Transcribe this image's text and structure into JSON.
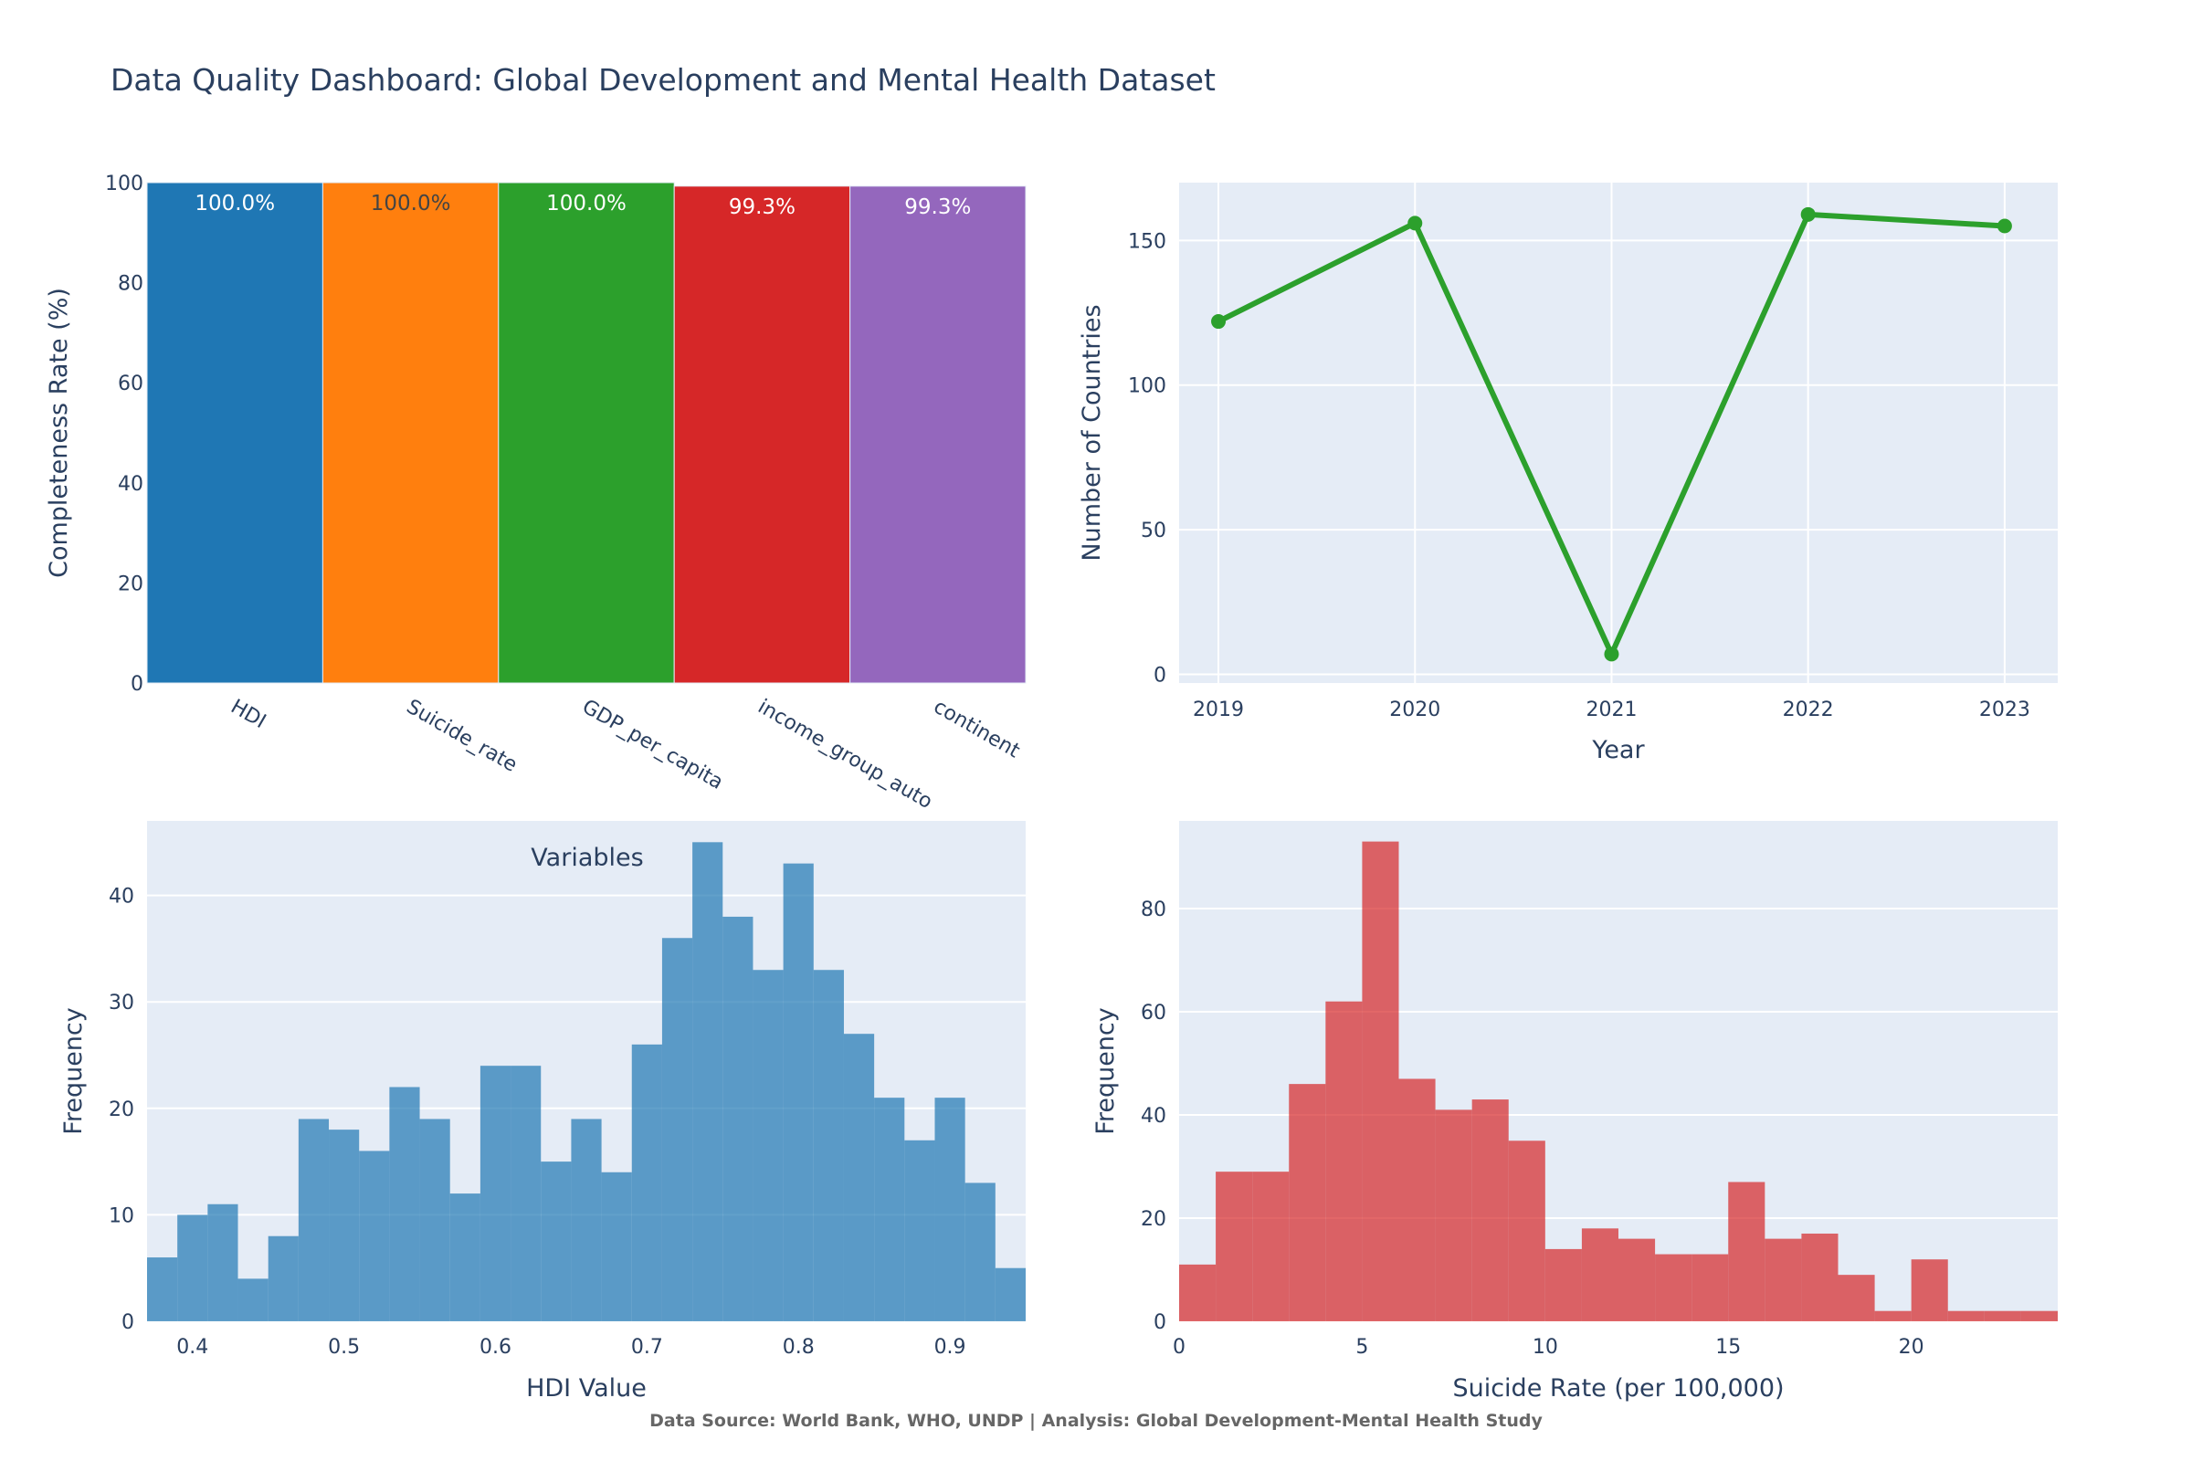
{
  "title": "Data Quality Dashboard: Global Development and Mental Health Dataset",
  "footer": "Data Source: World Bank, WHO, UNDP | Analysis: Global Development-Mental Health Study",
  "colors": {
    "plot_bg": "#e5ecf6",
    "grid": "#ffffff",
    "text": "#2a3f5f",
    "footer_text": "#666666"
  },
  "chart_data": [
    {
      "type": "bar",
      "categories": [
        "HDI",
        "Suicide_rate",
        "GDP_per_capita",
        "income_group_auto",
        "continent"
      ],
      "values": [
        100.0,
        100.0,
        100.0,
        99.3,
        99.3
      ],
      "data_labels": [
        "100.0%",
        "100.0%",
        "100.0%",
        "99.3%",
        "99.3%"
      ],
      "colors": [
        "#1f77b4",
        "#ff7f0e",
        "#2ca02c",
        "#d62728",
        "#9467bd"
      ],
      "label_colors": [
        "#ffffff",
        "#444444",
        "#ffffff",
        "#ffffff",
        "#ffffff"
      ],
      "ylabel": "Completeness Rate (%)",
      "xlabel": "Variables",
      "ylim": [
        0,
        100
      ],
      "yticks": [
        0,
        20,
        40,
        60,
        80,
        100
      ],
      "grid": false
    },
    {
      "type": "line",
      "x": [
        2019,
        2020,
        2021,
        2022,
        2023
      ],
      "values": [
        122,
        156,
        7,
        159,
        155
      ],
      "color": "#2ca02c",
      "xlabel": "Year",
      "ylabel": "Number of Countries",
      "xlim": [
        2018.8,
        2023.27
      ],
      "ylim": [
        -3,
        170
      ],
      "xticks": [
        2019,
        2020,
        2021,
        2022,
        2023
      ],
      "yticks": [
        0,
        50,
        100,
        150
      ],
      "grid": true
    },
    {
      "type": "histogram",
      "bin_start": 0.37,
      "bin_width": 0.02,
      "values": [
        6,
        10,
        11,
        4,
        8,
        19,
        18,
        16,
        22,
        19,
        12,
        24,
        24,
        15,
        19,
        14,
        26,
        36,
        45,
        38,
        33,
        43,
        33,
        27,
        21,
        17,
        21,
        13,
        5
      ],
      "color": "#1f77b4",
      "xlabel": "HDI Value",
      "ylabel": "Frequency",
      "xlim": [
        0.37,
        0.95
      ],
      "ylim": [
        0,
        47
      ],
      "xticks": [
        0.4,
        0.5,
        0.6,
        0.7,
        0.8,
        0.9
      ],
      "xtick_labels": [
        "0.4",
        "0.5",
        "0.6",
        "0.7",
        "0.8",
        "0.9"
      ],
      "yticks": [
        0,
        10,
        20,
        30,
        40
      ],
      "grid": true
    },
    {
      "type": "histogram",
      "bin_start": 0,
      "bin_width": 1,
      "values": [
        11,
        29,
        29,
        46,
        62,
        93,
        47,
        41,
        43,
        35,
        14,
        18,
        16,
        13,
        13,
        27,
        16,
        17,
        9,
        2,
        12,
        2,
        2,
        2
      ],
      "color": "#d62728",
      "xlabel": "Suicide Rate (per 100,000)",
      "ylabel": "Frequency",
      "xlim": [
        0,
        24
      ],
      "ylim": [
        0,
        97
      ],
      "xticks": [
        0,
        5,
        10,
        15,
        20
      ],
      "xtick_labels": [
        "0",
        "5",
        "10",
        "15",
        "20"
      ],
      "yticks": [
        0,
        20,
        40,
        60,
        80
      ],
      "grid": true
    }
  ]
}
